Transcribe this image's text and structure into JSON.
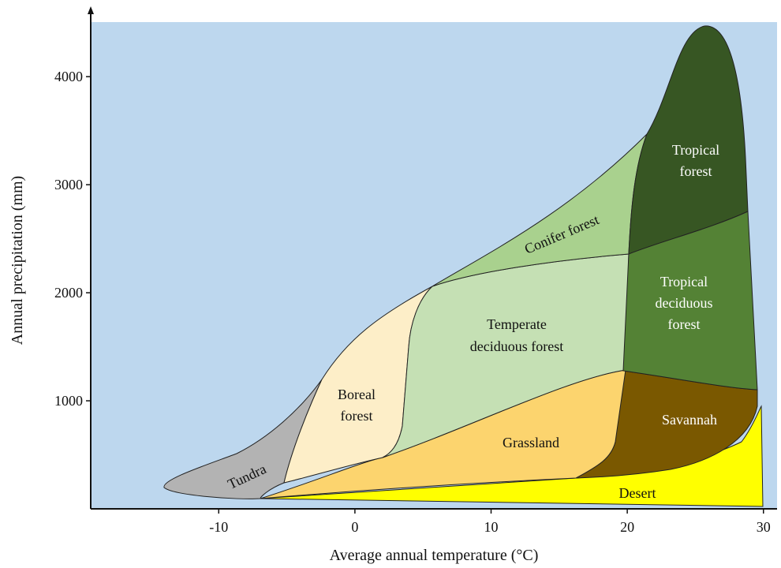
{
  "axes": {
    "x_label": "Average annual temperature (°C)",
    "y_label": "Annual precipitation (mm)",
    "xlim": [
      -19.4,
      31
    ],
    "ylim": [
      0,
      4600
    ],
    "xticks": [
      -10,
      0,
      10,
      20,
      30
    ],
    "yticks": [
      1000,
      2000,
      3000,
      4000
    ]
  },
  "regions": [
    {
      "lines": [
        "Tundra"
      ]
    },
    {
      "lines": [
        "Boreal",
        "forest"
      ]
    },
    {
      "lines": [
        "Conifer forest"
      ]
    },
    {
      "lines": [
        "Temperate",
        "deciduous forest"
      ]
    },
    {
      "lines": [
        "Grassland"
      ]
    },
    {
      "lines": [
        "Savannah"
      ]
    },
    {
      "lines": [
        "Desert"
      ]
    },
    {
      "lines": [
        "Tropical",
        "forest"
      ]
    },
    {
      "lines": [
        "Tropical",
        "deciduous",
        "forest"
      ]
    }
  ]
}
